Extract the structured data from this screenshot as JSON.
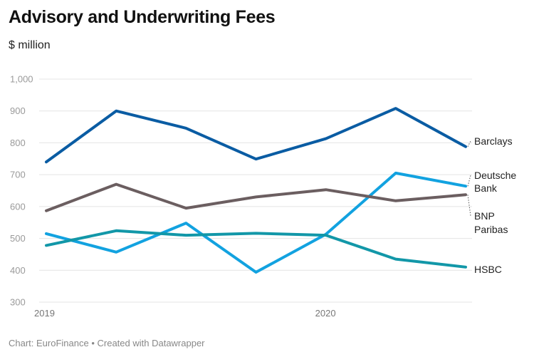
{
  "header": {
    "title": "Advisory and Underwriting Fees",
    "subtitle": "$ million"
  },
  "footer": {
    "source": "Chart: EuroFinance • Created with Datawrapper"
  },
  "chart_data": {
    "type": "line",
    "title": "Advisory and Underwriting Fees",
    "ylabel": "$ million",
    "ylim": [
      300,
      1000
    ],
    "yticks": [
      300,
      400,
      500,
      600,
      700,
      800,
      900,
      1000
    ],
    "ytick_labels": [
      "300",
      "400",
      "500",
      "600",
      "700",
      "800",
      "900",
      "1,000"
    ],
    "xticks": [
      "2019",
      "2020"
    ],
    "x": [
      "2019 Q1",
      "2019 Q2",
      "2019 Q3",
      "2019 Q4",
      "2020 Q1",
      "2020 Q2",
      "2020 Q3"
    ],
    "grid": true,
    "legend": "direct labels at line ends",
    "series": [
      {
        "name": "Barclays",
        "label_lines": [
          "Barclays"
        ],
        "color": "#0a5ca3",
        "values": [
          740,
          900,
          846,
          749,
          813,
          908,
          788
        ]
      },
      {
        "name": "Deutsche Bank",
        "label_lines": [
          "Deutsche",
          "Bank"
        ],
        "color": "#12a2e0",
        "values": [
          515,
          457,
          548,
          394,
          513,
          705,
          664
        ]
      },
      {
        "name": "BNP Paribas",
        "label_lines": [
          "BNP",
          "Paribas"
        ],
        "color": "#6b5e60",
        "values": [
          587,
          670,
          595,
          630,
          653,
          618,
          637
        ]
      },
      {
        "name": "HSBC",
        "label_lines": [
          "HSBC"
        ],
        "color": "#1297a8",
        "values": [
          478,
          524,
          510,
          516,
          510,
          435,
          410
        ]
      }
    ]
  }
}
